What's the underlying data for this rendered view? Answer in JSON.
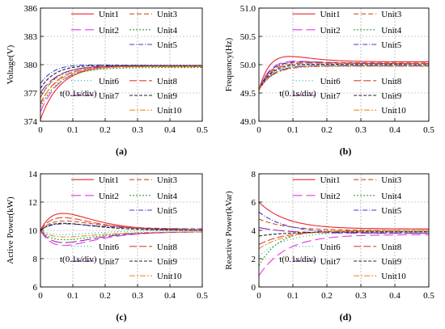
{
  "figure": {
    "legend_labels": [
      "Unit1",
      "Unit2",
      "Unit3",
      "Unit4",
      "Unit5",
      "Unit6",
      "Unit7",
      "Unit8",
      "Unit9",
      "Unit10"
    ],
    "colors": [
      "#e8252a",
      "#e23ae0",
      "#c9541f",
      "#2ea12c",
      "#3b3bd8",
      "#17a6a0",
      "#8a2aa8",
      "#e0402b",
      "#222222",
      "#f08c2a"
    ]
  },
  "chart_data": [
    {
      "type": "line",
      "caption": "(a)",
      "ylabel": "Voltage(V)",
      "time_note": "t(0.1s/div)",
      "xlim": [
        0,
        0.5
      ],
      "ylim": [
        374,
        386
      ],
      "xticks": [
        0,
        0.1,
        0.2,
        0.3,
        0.4,
        0.5
      ],
      "xtick_labels": [
        "0",
        "0.1",
        "0.2",
        "0.3",
        "0.4",
        "0.5"
      ],
      "yticks": [
        374,
        377,
        380,
        383,
        386
      ],
      "ytick_labels": [
        "374",
        "377",
        "380",
        "383",
        "386"
      ],
      "settle": 0.06,
      "series": [
        {
          "name": "Unit1",
          "start": 374.2,
          "peak": 0,
          "final": 379.9
        },
        {
          "name": "Unit2",
          "start": 375.0,
          "peak": 0,
          "final": 379.9
        },
        {
          "name": "Unit3",
          "start": 376.5,
          "peak": 0.3,
          "final": 379.8
        },
        {
          "name": "Unit4",
          "start": 375.5,
          "peak": 0,
          "final": 379.7
        },
        {
          "name": "Unit5",
          "start": 378.0,
          "peak": 0.4,
          "final": 379.9
        },
        {
          "name": "Unit6",
          "start": 376.5,
          "peak": 0.2,
          "final": 379.8
        },
        {
          "name": "Unit7",
          "start": 377.0,
          "peak": 0.1,
          "final": 379.9
        },
        {
          "name": "Unit8",
          "start": 375.8,
          "peak": 0.2,
          "final": 379.8
        },
        {
          "name": "Unit9",
          "start": 377.5,
          "peak": 0.3,
          "final": 379.9
        },
        {
          "name": "Unit10",
          "start": 376.0,
          "peak": 0,
          "final": 379.8
        }
      ]
    },
    {
      "type": "line",
      "caption": "(b)",
      "ylabel": "Frequency(Hz)",
      "time_note": "t(0.1s/div)",
      "xlim": [
        0,
        0.5
      ],
      "ylim": [
        49.0,
        51.0
      ],
      "xticks": [
        0,
        0.1,
        0.2,
        0.3,
        0.4,
        0.5
      ],
      "xtick_labels": [
        "0",
        "0.1",
        "0.2",
        "0.3",
        "0.4",
        "0.5"
      ],
      "yticks": [
        49.0,
        49.5,
        50.0,
        50.5,
        51.0
      ],
      "ytick_labels": [
        "49.0",
        "49.5",
        "50.0",
        "50.5",
        "51.0"
      ],
      "settle": 0.05,
      "series": [
        {
          "name": "Unit1",
          "start": 49.55,
          "peak": 0.22,
          "final": 50.05
        },
        {
          "name": "Unit2",
          "start": 49.55,
          "peak": 0.14,
          "final": 50.02
        },
        {
          "name": "Unit3",
          "start": 49.55,
          "peak": 0.1,
          "final": 50.03
        },
        {
          "name": "Unit4",
          "start": 49.55,
          "peak": 0.05,
          "final": 49.98
        },
        {
          "name": "Unit5",
          "start": 49.55,
          "peak": 0.12,
          "final": 50.02
        },
        {
          "name": "Unit6",
          "start": 49.55,
          "peak": 0.06,
          "final": 50.0
        },
        {
          "name": "Unit7",
          "start": 49.55,
          "peak": 0.04,
          "final": 49.98
        },
        {
          "name": "Unit8",
          "start": 49.55,
          "peak": 0.08,
          "final": 50.02
        },
        {
          "name": "Unit9",
          "start": 49.55,
          "peak": 0.07,
          "final": 50.0
        },
        {
          "name": "Unit10",
          "start": 49.55,
          "peak": 0.03,
          "final": 49.97
        }
      ]
    },
    {
      "type": "line",
      "caption": "(c)",
      "ylabel": "Active Power(kW)",
      "time_note": "t(0.1s/div)",
      "xlim": [
        0,
        0.5
      ],
      "ylim": [
        6,
        14
      ],
      "xticks": [
        0,
        0.1,
        0.2,
        0.3,
        0.4,
        0.5
      ],
      "xtick_labels": [
        "0",
        "0.1",
        "0.2",
        "0.3",
        "0.4",
        "0.5"
      ],
      "yticks": [
        6,
        8,
        10,
        12,
        14
      ],
      "ytick_labels": [
        "6",
        "8",
        "10",
        "12",
        "14"
      ],
      "settle": 0.07,
      "series": [
        {
          "name": "Unit1",
          "start": 10.0,
          "peak": 1.2,
          "final": 10.0
        },
        {
          "name": "Unit2",
          "start": 10.0,
          "peak": -1.0,
          "final": 9.9
        },
        {
          "name": "Unit3",
          "start": 10.0,
          "peak": 0.6,
          "final": 10.1
        },
        {
          "name": "Unit4",
          "start": 10.0,
          "peak": -0.6,
          "final": 9.9
        },
        {
          "name": "Unit5",
          "start": 10.0,
          "peak": 0.4,
          "final": 10.1
        },
        {
          "name": "Unit6",
          "start": 10.0,
          "peak": -0.3,
          "final": 10.0
        },
        {
          "name": "Unit7",
          "start": 10.0,
          "peak": -0.8,
          "final": 9.9
        },
        {
          "name": "Unit8",
          "start": 10.0,
          "peak": 0.9,
          "final": 10.0
        },
        {
          "name": "Unit9",
          "start": 10.0,
          "peak": 0.5,
          "final": 10.0
        },
        {
          "name": "Unit10",
          "start": 10.0,
          "peak": -0.4,
          "final": 9.9
        }
      ]
    },
    {
      "type": "line",
      "caption": "(d)",
      "ylabel": "Reactive Power(kVar)",
      "time_note": "t(0.1s/div)",
      "xlim": [
        0,
        0.5
      ],
      "ylim": [
        0,
        8
      ],
      "xticks": [
        0,
        0.1,
        0.2,
        0.3,
        0.4,
        0.5
      ],
      "xtick_labels": [
        "0",
        "0.1",
        "0.2",
        "0.3",
        "0.4",
        "0.5"
      ],
      "yticks": [
        0,
        2,
        4,
        6,
        8
      ],
      "ytick_labels": [
        "0",
        "2",
        "4",
        "6",
        "8"
      ],
      "settle": 0.08,
      "series": [
        {
          "name": "Unit1",
          "start": 6.0,
          "peak": 0,
          "final": 4.1
        },
        {
          "name": "Unit2",
          "start": 0.8,
          "peak": 0,
          "final": 3.7
        },
        {
          "name": "Unit3",
          "start": 4.8,
          "peak": 0,
          "final": 4.0
        },
        {
          "name": "Unit4",
          "start": 1.5,
          "peak": 0.4,
          "final": 3.9
        },
        {
          "name": "Unit5",
          "start": 5.3,
          "peak": 0,
          "final": 3.8
        },
        {
          "name": "Unit6",
          "start": 2.2,
          "peak": 0,
          "final": 3.9
        },
        {
          "name": "Unit7",
          "start": 4.2,
          "peak": 0,
          "final": 3.8
        },
        {
          "name": "Unit8",
          "start": 3.0,
          "peak": 0,
          "final": 4.0
        },
        {
          "name": "Unit9",
          "start": 3.6,
          "peak": 0,
          "final": 3.9
        },
        {
          "name": "Unit10",
          "start": 2.7,
          "peak": 0,
          "final": 4.0
        }
      ]
    }
  ]
}
